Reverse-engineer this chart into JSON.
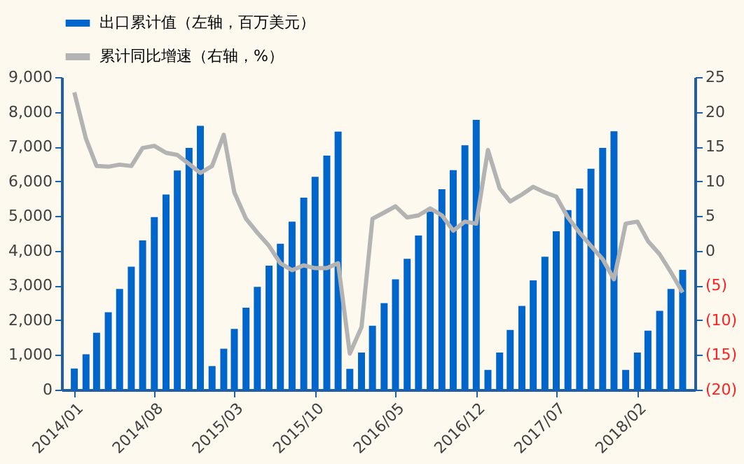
{
  "chart_data": {
    "type": "bar",
    "legend": "top",
    "grid": false,
    "x": [
      "2014-01",
      "2014-02",
      "2014-03",
      "2014-04",
      "2014-05",
      "2014-06",
      "2014-07",
      "2014-08",
      "2014-09",
      "2014-10",
      "2014-11",
      "2014-12",
      "2015-01",
      "2015-02",
      "2015-03",
      "2015-04",
      "2015-05",
      "2015-06",
      "2015-07",
      "2015-08",
      "2015-09",
      "2015-10",
      "2015-11",
      "2015-12",
      "2016-01",
      "2016-02",
      "2016-03",
      "2016-04",
      "2016-05",
      "2016-06",
      "2016-07",
      "2016-08",
      "2016-09",
      "2016-10",
      "2016-11",
      "2016-12",
      "2017-01",
      "2017-02",
      "2017-03",
      "2017-04",
      "2017-05",
      "2017-06",
      "2017-07",
      "2017-08",
      "2017-09",
      "2017-10",
      "2017-11",
      "2017-12",
      "2018-01",
      "2018-02",
      "2018-03",
      "2018-04",
      "2018-05",
      "2018-06"
    ],
    "xlim": [
      "2013-12-17",
      "2018-06-15"
    ],
    "xticks": [
      {
        "value": "2014-01",
        "label": "2014/01"
      },
      {
        "value": "2014-08",
        "label": "2014/08"
      },
      {
        "value": "2015-03",
        "label": "2015/03"
      },
      {
        "value": "2015-10",
        "label": "2015/10"
      },
      {
        "value": "2016-05",
        "label": "2016/05"
      },
      {
        "value": "2016-12",
        "label": "2016/12"
      },
      {
        "value": "2017-07",
        "label": "2017/07"
      },
      {
        "value": "2018-02",
        "label": "2018/02"
      }
    ],
    "ylim": [
      0,
      9000
    ],
    "yticks": [
      0,
      {
        "value": 1000,
        "label": "1,000"
      },
      {
        "value": 2000,
        "label": "2,000"
      },
      {
        "value": 3000,
        "label": "3,000"
      },
      {
        "value": 4000,
        "label": "4,000"
      },
      {
        "value": 5000,
        "label": "5,000"
      },
      {
        "value": 6000,
        "label": "6,000"
      },
      {
        "value": 7000,
        "label": "7,000"
      },
      {
        "value": 8000,
        "label": "8,000"
      },
      {
        "value": 9000,
        "label": "9,000"
      }
    ],
    "y2lim": [
      -20,
      25
    ],
    "y2ticks": [
      {
        "value": -20,
        "label": "(20)"
      },
      {
        "value": -15,
        "label": "(15)"
      },
      {
        "value": -10,
        "label": "(10)"
      },
      {
        "value": -5,
        "label": "(5)"
      },
      0,
      5,
      10,
      15,
      20,
      25
    ],
    "series": [
      {
        "name": "出口累计值（左轴，百万美元）",
        "color": "#0066cc",
        "values": [
          610,
          1020,
          1640,
          2230,
          2900,
          3540,
          4300,
          4970,
          5620,
          6310,
          6960,
          7600,
          680,
          1180,
          1750,
          2360,
          2960,
          3570,
          4200,
          4840,
          5530,
          6130,
          6740,
          7430,
          600,
          1070,
          1840,
          2490,
          3180,
          3770,
          4440,
          5130,
          5770,
          6320,
          7040,
          7770,
          570,
          1070,
          1720,
          2410,
          3150,
          3830,
          4560,
          5170,
          5790,
          6360,
          6960,
          7440,
          570,
          1070,
          1700,
          2270,
          2900,
          3450
        ]
      },
      {
        "name": "累计同比增速（右轴，%）",
        "type": "line",
        "axis": "y2",
        "color": "#b3b3b3",
        "values": [
          22.8,
          16.1,
          12.2,
          12.1,
          12.4,
          12.2,
          14.8,
          15.1,
          14.1,
          13.8,
          12.5,
          11.2,
          12.2,
          16.7,
          8.4,
          4.6,
          2.6,
          0.7,
          -1.8,
          -2.8,
          -2.1,
          -2.5,
          -2.5,
          -1.8,
          -14.8,
          -11.0,
          4.6,
          5.5,
          6.4,
          4.8,
          5.1,
          6.1,
          5.1,
          2.9,
          4.2,
          3.9,
          14.5,
          9.0,
          7.1,
          8.1,
          9.2,
          8.4,
          7.8,
          4.8,
          2.6,
          0.7,
          -1.2,
          -4.1,
          3.9,
          4.2,
          1.4,
          -0.5,
          -3.1,
          -6.0
        ]
      }
    ]
  }
}
